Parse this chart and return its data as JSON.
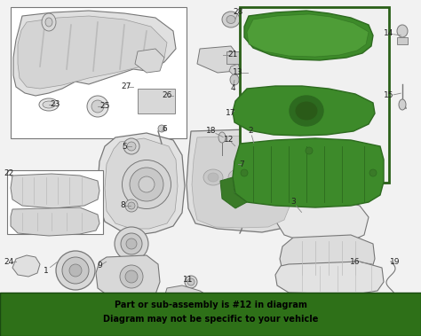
{
  "bg_color": "#f2f2f2",
  "line_color": "#aaaaaa",
  "dark_line": "#777777",
  "green_dark": "#2d6a1f",
  "green_mid": "#3d8a2a",
  "green_light": "#5aaa40",
  "banner_green": "#2e7018",
  "banner_text1": "Part or sub-assembly is #12 in diagram",
  "banner_text2": "Diagram may not be specific to your vehicle",
  "white": "#ffffff",
  "label_color": "#222222",
  "label_size": 6.5,
  "highlight_border": "#2a6018"
}
